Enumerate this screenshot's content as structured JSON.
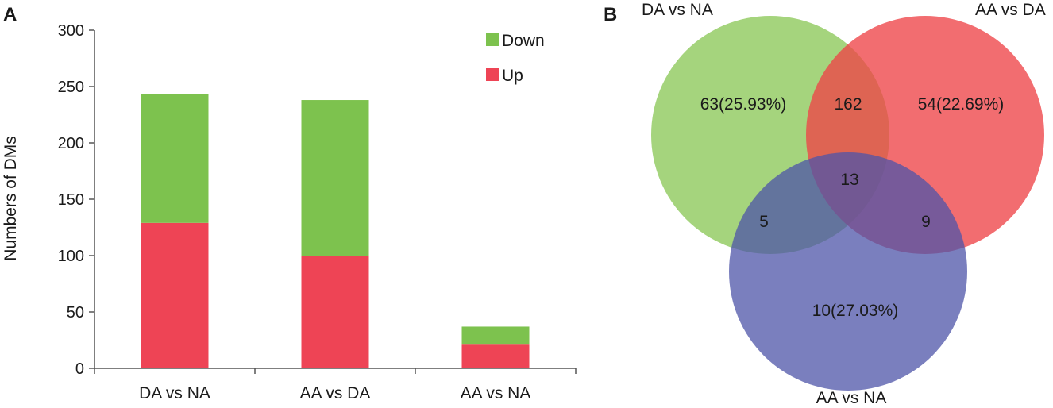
{
  "chart_data": [
    {
      "panel": "A",
      "type": "bar",
      "stacked": true,
      "title": "",
      "xlabel": "",
      "ylabel": "Numbers of DMs",
      "ylim": [
        0,
        300
      ],
      "yticks": [
        0,
        50,
        100,
        150,
        200,
        250,
        300
      ],
      "categories": [
        "DA vs NA",
        "AA vs DA",
        "AA vs NA"
      ],
      "series": [
        {
          "name": "Up",
          "color": "#ee4455",
          "values": [
            129,
            100,
            21
          ]
        },
        {
          "name": "Down",
          "color": "#7dc24e",
          "values": [
            114,
            138,
            16
          ]
        }
      ],
      "legend": [
        "Down",
        "Up"
      ],
      "legend_position": "top-right"
    },
    {
      "panel": "B",
      "type": "venn",
      "sets": [
        {
          "name": "DA vs NA",
          "color": "#8cc858"
        },
        {
          "name": "AA vs DA",
          "color": "#ee5355"
        },
        {
          "name": "AA vs NA",
          "color": "#5a62b0"
        }
      ],
      "regions": {
        "DA_only": "63(25.93%)",
        "AA_DA_only": "54(22.69%)",
        "AA_NA_only": "10(27.03%)",
        "DA_AA_DA": "162",
        "DA_AA_NA": "5",
        "AA_DA_AA_NA": "9",
        "all_three": "13"
      }
    }
  ]
}
